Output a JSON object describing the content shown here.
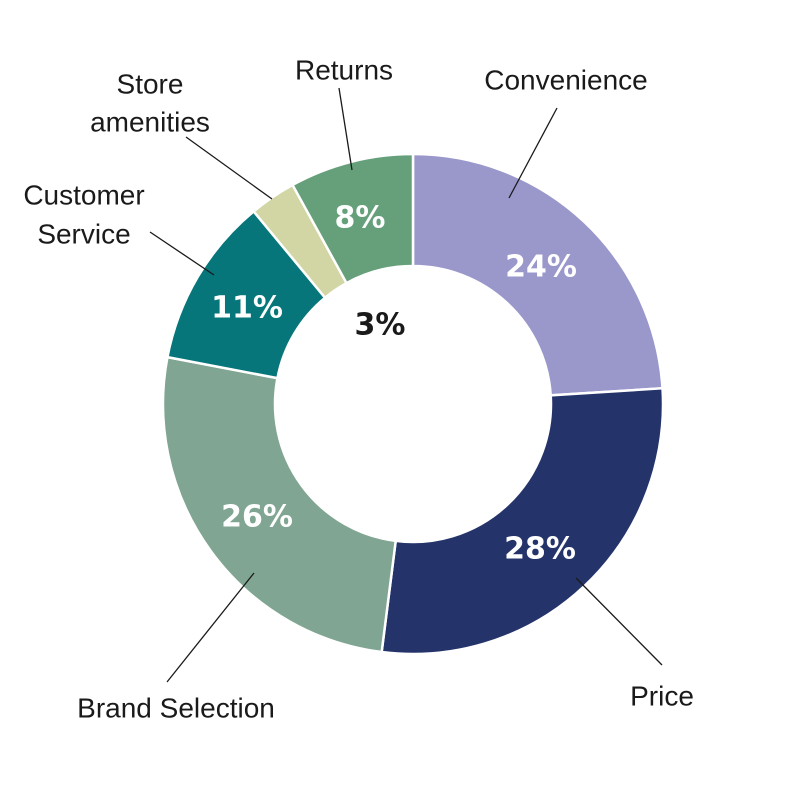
{
  "chart_data": {
    "type": "pie",
    "donut": true,
    "slices": [
      {
        "category": "Convenience",
        "value": 24,
        "label": "24%",
        "color": "#9a97cb"
      },
      {
        "category": "Price",
        "value": 28,
        "label": "28%",
        "color": "#24346a"
      },
      {
        "category": "Brand Selection",
        "value": 26,
        "label": "26%",
        "color": "#80a592"
      },
      {
        "category": "Customer Service",
        "value": 11,
        "label": "11%",
        "color": "#06767a"
      },
      {
        "category": "Store amenities",
        "value": 3,
        "label": "3%",
        "color": "#d1d6a4"
      },
      {
        "category": "Returns",
        "value": 8,
        "label": "8%",
        "color": "#66a07b"
      }
    ]
  }
}
